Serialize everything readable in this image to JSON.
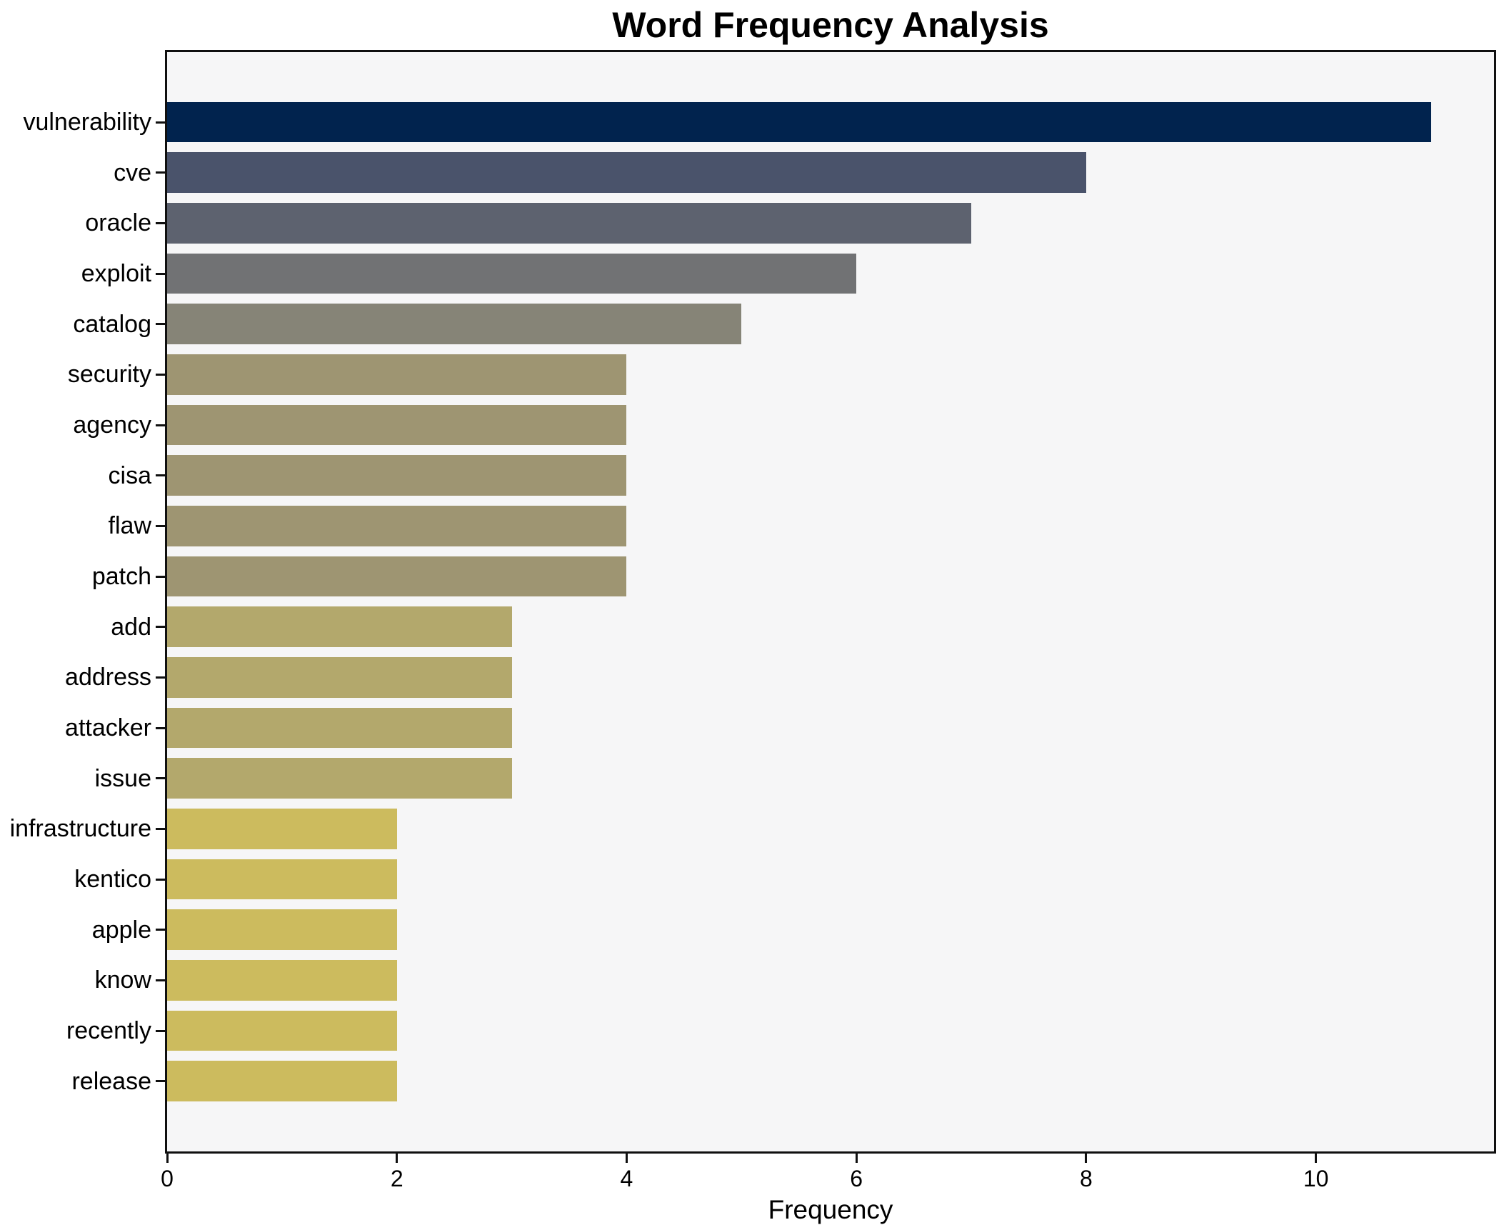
{
  "chart_data": {
    "type": "bar",
    "orientation": "horizontal",
    "title": "Word Frequency Analysis",
    "xlabel": "Frequency",
    "ylabel": "",
    "categories": [
      "vulnerability",
      "cve",
      "oracle",
      "exploit",
      "catalog",
      "security",
      "agency",
      "cisa",
      "flaw",
      "patch",
      "add",
      "address",
      "attacker",
      "issue",
      "infrastructure",
      "kentico",
      "apple",
      "know",
      "recently",
      "release"
    ],
    "values": [
      11,
      8,
      7,
      6,
      5,
      4,
      4,
      4,
      4,
      4,
      3,
      3,
      3,
      3,
      2,
      2,
      2,
      2,
      2,
      2
    ],
    "bar_colors": [
      "#01234e",
      "#4a536b",
      "#5d626f",
      "#717274",
      "#868477",
      "#9e9572",
      "#9e9572",
      "#9e9572",
      "#9e9572",
      "#9e9572",
      "#b3a86c",
      "#b3a86c",
      "#b3a86c",
      "#b3a86c",
      "#ccbb5e",
      "#ccbb5e",
      "#ccbb5e",
      "#ccbb5e",
      "#ccbb5e",
      "#ccbb5e"
    ],
    "xlim": [
      0,
      11.55
    ],
    "xticks": [
      0,
      2,
      4,
      6,
      8,
      10
    ],
    "grid": false,
    "legend_position": "none",
    "plot_bg": "#f6f6f7",
    "figure_bg": "#ffffff",
    "spine_color": "#101010",
    "text_color": "#000000"
  }
}
